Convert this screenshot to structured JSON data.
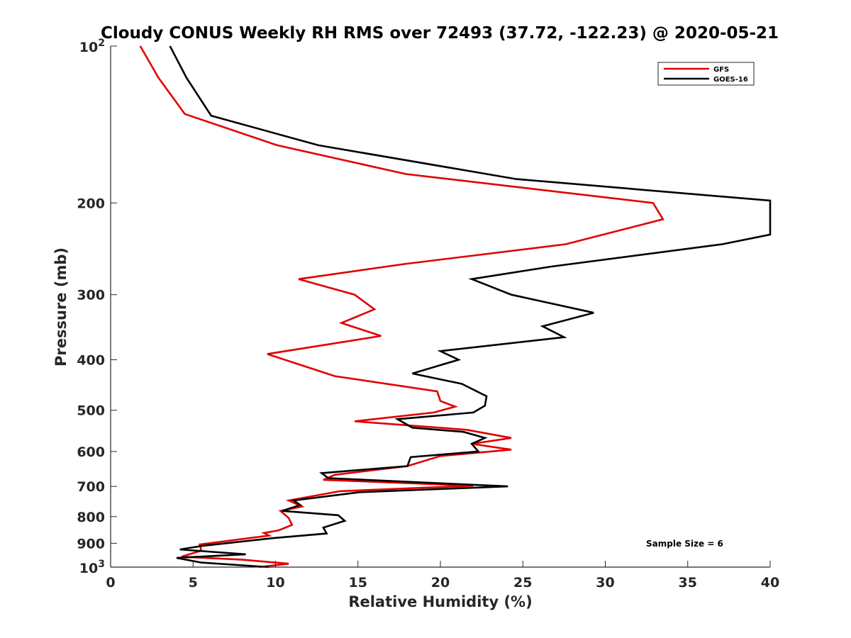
{
  "chart_data": {
    "type": "line",
    "title": "Cloudy CONUS Weekly RH RMS over 72493 (37.72, -122.23) @ 2020-05-21",
    "xlabel": "Relative Humidity (%)",
    "ylabel": "Pressure (mb)",
    "xlim": [
      0,
      40
    ],
    "ylim": [
      100,
      1000
    ],
    "y_scale": "log",
    "y_reversed": true,
    "grid": false,
    "legend_position": "top-right",
    "x_ticks": [
      "0",
      "5",
      "10",
      "15",
      "20",
      "25",
      "30",
      "35",
      "40"
    ],
    "y_ticks": [
      {
        "value": 100,
        "base": "10",
        "exp": "2"
      },
      {
        "value": 200,
        "label": "200"
      },
      {
        "value": 300,
        "label": "300"
      },
      {
        "value": 400,
        "label": "400"
      },
      {
        "value": 500,
        "label": "500"
      },
      {
        "value": 600,
        "label": "600"
      },
      {
        "value": 700,
        "label": "700"
      },
      {
        "value": 800,
        "label": "800"
      },
      {
        "value": 900,
        "label": "900"
      },
      {
        "value": 1000,
        "base": "10",
        "exp": "3"
      }
    ],
    "annotation": "Sample Size = 6",
    "series": [
      {
        "name": "GFS",
        "color": "#e00000",
        "points": [
          [
            1.8,
            100
          ],
          [
            2.9,
            115
          ],
          [
            4.5,
            135
          ],
          [
            10.1,
            155
          ],
          [
            17.9,
            176
          ],
          [
            32.9,
            200
          ],
          [
            33.5,
            215
          ],
          [
            27.6,
            240
          ],
          [
            17.8,
            262
          ],
          [
            11.4,
            280
          ],
          [
            14.8,
            300
          ],
          [
            16.0,
            320
          ],
          [
            14.0,
            340
          ],
          [
            16.4,
            360
          ],
          [
            9.5,
            390
          ],
          [
            11.6,
            410
          ],
          [
            13.6,
            430
          ],
          [
            19.8,
            460
          ],
          [
            20.0,
            480
          ],
          [
            20.9,
            492
          ],
          [
            19.6,
            505
          ],
          [
            14.8,
            525
          ],
          [
            21.6,
            545
          ],
          [
            24.3,
            565
          ],
          [
            21.9,
            580
          ],
          [
            24.3,
            595
          ],
          [
            20.0,
            612
          ],
          [
            18.0,
            640
          ],
          [
            13.6,
            665
          ],
          [
            12.9,
            680
          ],
          [
            22.0,
            698
          ],
          [
            13.9,
            715
          ],
          [
            10.8,
            745
          ],
          [
            11.6,
            765
          ],
          [
            10.3,
            780
          ],
          [
            10.8,
            805
          ],
          [
            11.0,
            830
          ],
          [
            10.2,
            850
          ],
          [
            9.3,
            860
          ],
          [
            9.6,
            870
          ],
          [
            5.4,
            905
          ],
          [
            5.5,
            930
          ],
          [
            4.3,
            955
          ],
          [
            8.0,
            968
          ],
          [
            10.8,
            985
          ],
          [
            9.0,
            1000
          ]
        ]
      },
      {
        "name": "GOES-16",
        "color": "#000000",
        "points": [
          [
            3.6,
            100
          ],
          [
            4.6,
            115
          ],
          [
            6.1,
            136
          ],
          [
            12.6,
            155
          ],
          [
            24.6,
            180
          ],
          [
            40.0,
            198
          ],
          [
            40.0,
            230
          ],
          [
            37.1,
            240
          ],
          [
            26.7,
            265
          ],
          [
            21.9,
            280
          ],
          [
            24.3,
            300
          ],
          [
            29.3,
            325
          ],
          [
            26.2,
            345
          ],
          [
            27.5,
            362
          ],
          [
            20.0,
            385
          ],
          [
            21.1,
            400
          ],
          [
            18.3,
            425
          ],
          [
            21.3,
            445
          ],
          [
            22.8,
            470
          ],
          [
            22.7,
            490
          ],
          [
            22.0,
            505
          ],
          [
            17.4,
            520
          ],
          [
            18.3,
            540
          ],
          [
            21.4,
            550
          ],
          [
            22.7,
            565
          ],
          [
            21.9,
            580
          ],
          [
            22.3,
            600
          ],
          [
            18.2,
            615
          ],
          [
            18.0,
            640
          ],
          [
            12.8,
            660
          ],
          [
            13.2,
            675
          ],
          [
            24.1,
            700
          ],
          [
            15.1,
            718
          ],
          [
            11.1,
            745
          ],
          [
            11.5,
            760
          ],
          [
            10.4,
            780
          ],
          [
            13.8,
            795
          ],
          [
            14.2,
            815
          ],
          [
            12.9,
            840
          ],
          [
            13.1,
            862
          ],
          [
            9.8,
            880
          ],
          [
            5.6,
            910
          ],
          [
            4.2,
            925
          ],
          [
            8.2,
            945
          ],
          [
            4.0,
            960
          ],
          [
            5.5,
            980
          ],
          [
            9.6,
            1000
          ]
        ]
      }
    ]
  }
}
